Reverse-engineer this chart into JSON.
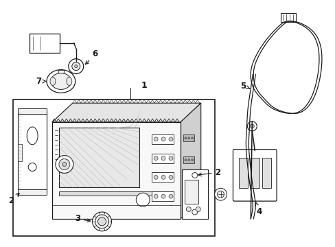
{
  "background_color": "#ffffff",
  "line_color": "#1a1a1a",
  "figure_width": 4.89,
  "figure_height": 3.6,
  "dpi": 100
}
